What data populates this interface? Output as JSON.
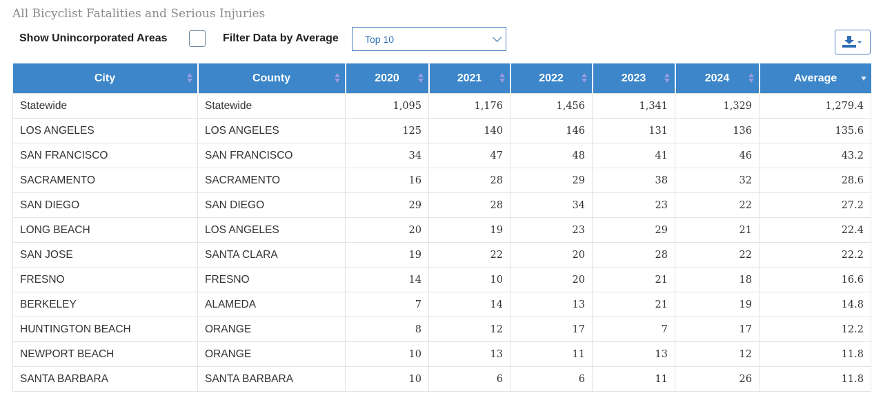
{
  "title": "All Bicyclist Fatalities and Serious Injuries",
  "controls": {
    "unincorporated_label": "Show Unincorporated Areas",
    "unincorporated_checked": false,
    "filter_label": "Filter Data by Average",
    "filter_value": "Top 10",
    "export_icon": "download-icon"
  },
  "table": {
    "columns": [
      "City",
      "County",
      "2020",
      "2021",
      "2022",
      "2023",
      "2024",
      "Average"
    ],
    "sort": {
      "column": "Average",
      "direction": "descending"
    },
    "rows": [
      [
        "Statewide",
        "Statewide",
        "1,095",
        "1,176",
        "1,456",
        "1,341",
        "1,329",
        "1,279.4"
      ],
      [
        "LOS ANGELES",
        "LOS ANGELES",
        "125",
        "140",
        "146",
        "131",
        "136",
        "135.6"
      ],
      [
        "SAN FRANCISCO",
        "SAN FRANCISCO",
        "34",
        "47",
        "48",
        "41",
        "46",
        "43.2"
      ],
      [
        "SACRAMENTO",
        "SACRAMENTO",
        "16",
        "28",
        "29",
        "38",
        "32",
        "28.6"
      ],
      [
        "SAN DIEGO",
        "SAN DIEGO",
        "29",
        "28",
        "34",
        "23",
        "22",
        "27.2"
      ],
      [
        "LONG BEACH",
        "LOS ANGELES",
        "20",
        "19",
        "23",
        "29",
        "21",
        "22.4"
      ],
      [
        "SAN JOSE",
        "SANTA CLARA",
        "19",
        "22",
        "20",
        "28",
        "22",
        "22.2"
      ],
      [
        "FRESNO",
        "FRESNO",
        "14",
        "10",
        "20",
        "21",
        "18",
        "16.6"
      ],
      [
        "BERKELEY",
        "ALAMEDA",
        "7",
        "14",
        "13",
        "21",
        "19",
        "14.8"
      ],
      [
        "HUNTINGTON BEACH",
        "ORANGE",
        "8",
        "12",
        "17",
        "7",
        "17",
        "12.2"
      ],
      [
        "NEWPORT BEACH",
        "ORANGE",
        "10",
        "13",
        "11",
        "13",
        "12",
        "11.8"
      ],
      [
        "SANTA BARBARA",
        "SANTA BARBARA",
        "10",
        "6",
        "6",
        "11",
        "26",
        "11.8"
      ]
    ]
  },
  "colors": {
    "header_bg": "#3c86c9",
    "accent": "#2f6db5"
  }
}
